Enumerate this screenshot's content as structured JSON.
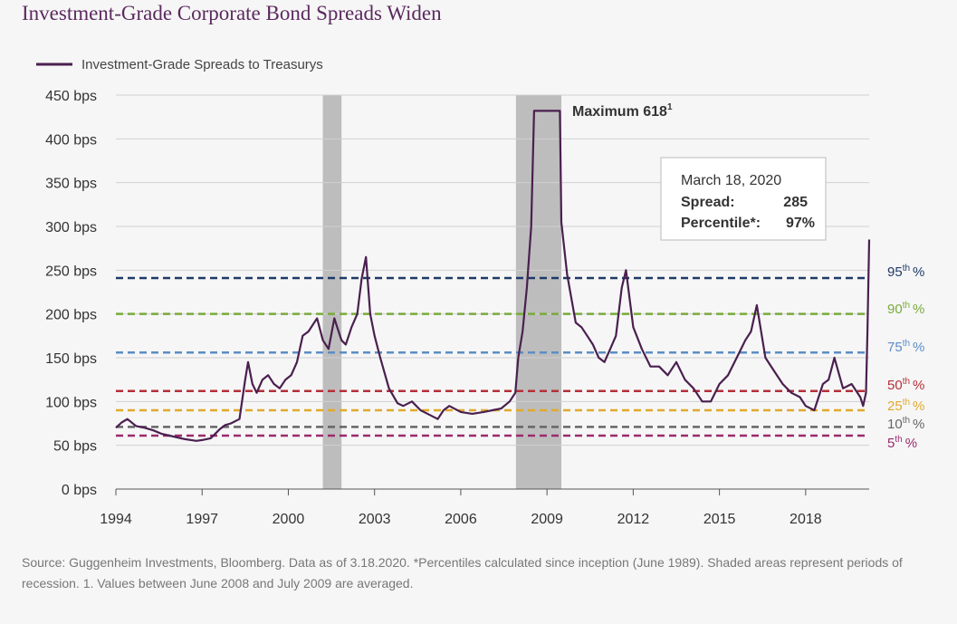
{
  "title": "Investment-Grade Corporate Bond Spreads Widen",
  "source_note": "Source: Guggenheim Investments, Bloomberg. Data as of 3.18.2020. *Percentiles calculated since inception (June 1989). Shaded areas represent periods of recession. 1. Values between June 2008 and July 2009 are averaged.",
  "chart_data": {
    "type": "line",
    "legend": {
      "label": "Investment-Grade Spreads to Treasurys",
      "placement": "top-left"
    },
    "y_axis": {
      "min": 0,
      "max": 450,
      "unit": "bps",
      "ticks": [
        0,
        50,
        100,
        150,
        200,
        250,
        300,
        350,
        400,
        450
      ],
      "tick_labels": [
        "0 bps",
        "50 bps",
        "100 bps",
        "150 bps",
        "200 bps",
        "250 bps",
        "300 bps",
        "350 bps",
        "400 bps",
        "450 bps"
      ],
      "grid": true
    },
    "x_axis": {
      "min": 1994.0,
      "max": 2020.21,
      "ticks": [
        1994,
        1997,
        2000,
        2003,
        2006,
        2009,
        2012,
        2015,
        2018
      ],
      "tick_labels": [
        "1994",
        "1997",
        "2000",
        "2003",
        "2006",
        "2009",
        "2012",
        "2015",
        "2018"
      ]
    },
    "recessions": [
      {
        "start": 2001.2,
        "end": 2001.85
      },
      {
        "start": 2007.92,
        "end": 2009.5
      }
    ],
    "percentile_lines": [
      {
        "value": 241,
        "label": "95",
        "color": "#1f3a68"
      },
      {
        "value": 200,
        "label": "90",
        "color": "#7aaa3c"
      },
      {
        "value": 156,
        "label": "75",
        "color": "#5b8ec6"
      },
      {
        "value": 112,
        "label": "50",
        "color": "#b5303a"
      },
      {
        "value": 90,
        "label": "25",
        "color": "#e0a92c"
      },
      {
        "value": 71,
        "label": "10",
        "color": "#666666"
      },
      {
        "value": 61,
        "label": "5",
        "color": "#9c2a6b"
      }
    ],
    "percentile_suffix": {
      "sup": "th",
      "pct": "%"
    },
    "series": [
      {
        "color": "#4a1f4f",
        "x": [
          1994.0,
          1994.2,
          1994.4,
          1994.7,
          1995.0,
          1995.3,
          1995.6,
          1996.0,
          1996.4,
          1996.8,
          1997.0,
          1997.3,
          1997.6,
          1997.8,
          1998.0,
          1998.3,
          1998.5,
          1998.6,
          1998.75,
          1998.9,
          1999.1,
          1999.3,
          1999.5,
          1999.7,
          1999.9,
          2000.1,
          2000.3,
          2000.5,
          2000.7,
          2000.9,
          2001.0,
          2001.2,
          2001.4,
          2001.6,
          2001.7,
          2001.85,
          2002.0,
          2002.2,
          2002.4,
          2002.55,
          2002.7,
          2002.85,
          2003.0,
          2003.2,
          2003.5,
          2003.8,
          2004.0,
          2004.3,
          2004.6,
          2004.9,
          2005.2,
          2005.4,
          2005.6,
          2006.0,
          2006.4,
          2006.8,
          2007.1,
          2007.4,
          2007.7,
          2007.9,
          2008.0,
          2008.15,
          2008.3,
          2008.45,
          2008.55,
          2009.45,
          2009.5,
          2009.7,
          2010.0,
          2010.2,
          2010.4,
          2010.6,
          2010.8,
          2011.0,
          2011.2,
          2011.4,
          2011.6,
          2011.75,
          2012.0,
          2012.3,
          2012.6,
          2012.9,
          2013.2,
          2013.5,
          2013.8,
          2014.1,
          2014.4,
          2014.7,
          2015.0,
          2015.3,
          2015.6,
          2015.9,
          2016.1,
          2016.3,
          2016.6,
          2016.9,
          2017.2,
          2017.5,
          2017.8,
          2018.0,
          2018.3,
          2018.6,
          2018.8,
          2019.0,
          2019.3,
          2019.6,
          2019.9,
          2020.0,
          2020.1,
          2020.15,
          2020.21
        ],
        "y": [
          70,
          76,
          80,
          72,
          70,
          67,
          63,
          60,
          57,
          55,
          56,
          58,
          68,
          73,
          75,
          80,
          125,
          145,
          120,
          110,
          125,
          130,
          120,
          115,
          125,
          130,
          145,
          175,
          180,
          190,
          195,
          170,
          160,
          195,
          185,
          170,
          165,
          185,
          200,
          240,
          265,
          200,
          175,
          150,
          115,
          98,
          95,
          100,
          90,
          85,
          80,
          90,
          95,
          88,
          86,
          88,
          90,
          92,
          100,
          110,
          150,
          180,
          230,
          300,
          432,
          432,
          305,
          245,
          190,
          185,
          175,
          165,
          150,
          145,
          160,
          175,
          230,
          250,
          185,
          160,
          140,
          140,
          130,
          145,
          125,
          115,
          100,
          100,
          120,
          130,
          150,
          170,
          180,
          210,
          150,
          135,
          120,
          110,
          105,
          95,
          90,
          120,
          125,
          150,
          115,
          120,
          105,
          95,
          110,
          180,
          285
        ]
      }
    ],
    "annotations": [
      {
        "label": "Maximum 618",
        "sup": "1",
        "x": 2009.0,
        "y": 432
      },
      {
        "date": "March 18, 2020",
        "spread_label": "Spread:",
        "spread_value": "285",
        "percentile_label": "Percentile*:",
        "percentile_value": "97%"
      }
    ]
  }
}
